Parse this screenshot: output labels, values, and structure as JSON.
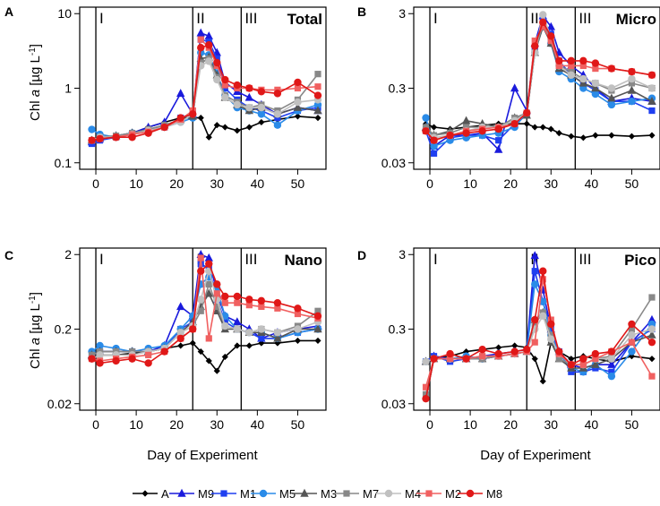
{
  "chart_data": {
    "type": "line",
    "xlabel": "Day of Experiment",
    "ylabel": "Chl a [µg L⁻¹]",
    "y_scale": "log",
    "xlim": [
      -4,
      57
    ],
    "x_ticks": [
      0,
      10,
      20,
      30,
      40,
      50
    ],
    "phase_boundaries": [
      0,
      24,
      36
    ],
    "phase_labels": [
      "I",
      "II",
      "III"
    ],
    "days": [
      -1,
      1,
      5,
      9,
      13,
      17,
      21,
      24,
      26,
      28,
      30,
      32,
      35,
      38,
      41,
      45,
      50,
      55
    ],
    "legend": [
      {
        "name": "A",
        "color": "#000000",
        "marker": "diamond"
      },
      {
        "name": "M9",
        "color": "#1a1adc",
        "marker": "triangle"
      },
      {
        "name": "M1",
        "color": "#1f3ff0",
        "marker": "square"
      },
      {
        "name": "M5",
        "color": "#2a8be8",
        "marker": "circle"
      },
      {
        "name": "M3",
        "color": "#555555",
        "marker": "triangle"
      },
      {
        "name": "M7",
        "color": "#888888",
        "marker": "square"
      },
      {
        "name": "M4",
        "color": "#c0c0c0",
        "marker": "circle"
      },
      {
        "name": "M2",
        "color": "#f06060",
        "marker": "square"
      },
      {
        "name": "M8",
        "color": "#e01818",
        "marker": "circle"
      }
    ],
    "panels": [
      {
        "letter": "A",
        "title": "Total",
        "ylim": [
          0.1,
          10
        ],
        "y_ticks": [
          0.1,
          1,
          10
        ],
        "y_tick_labels": [
          "0.1",
          "1",
          "10"
        ],
        "series": [
          {
            "name": "A",
            "values": [
              0.2,
              0.22,
              0.22,
              0.25,
              0.3,
              0.35,
              0.4,
              0.4,
              0.4,
              0.22,
              0.32,
              0.3,
              0.27,
              0.3,
              0.35,
              0.38,
              0.42,
              0.4
            ]
          },
          {
            "name": "M9",
            "values": [
              0.19,
              0.21,
              0.23,
              0.25,
              0.3,
              0.35,
              0.85,
              0.45,
              5.5,
              5.0,
              3.0,
              1.2,
              0.9,
              0.75,
              0.6,
              0.45,
              0.55,
              0.5
            ]
          },
          {
            "name": "M1",
            "values": [
              0.18,
              0.2,
              0.22,
              0.24,
              0.27,
              0.3,
              0.4,
              0.45,
              4.5,
              4.2,
              2.5,
              1.0,
              0.7,
              0.55,
              0.5,
              0.4,
              0.5,
              0.55
            ]
          },
          {
            "name": "M5",
            "values": [
              0.28,
              0.24,
              0.22,
              0.25,
              0.27,
              0.3,
              0.35,
              0.4,
              3.0,
              2.8,
              1.6,
              0.8,
              0.55,
              0.5,
              0.45,
              0.32,
              0.5,
              0.6
            ]
          },
          {
            "name": "M3",
            "values": [
              0.2,
              0.22,
              0.23,
              0.25,
              0.28,
              0.32,
              0.38,
              0.42,
              2.5,
              2.6,
              1.5,
              0.75,
              0.6,
              0.5,
              0.55,
              0.45,
              0.55,
              0.5
            ]
          },
          {
            "name": "M7",
            "values": [
              0.2,
              0.22,
              0.23,
              0.25,
              0.28,
              0.32,
              0.38,
              0.5,
              2.2,
              2.5,
              1.4,
              0.8,
              0.65,
              0.55,
              0.6,
              0.5,
              0.7,
              1.55
            ]
          },
          {
            "name": "M4",
            "values": [
              0.2,
              0.22,
              0.22,
              0.24,
              0.27,
              0.3,
              0.35,
              0.45,
              2.0,
              2.3,
              1.3,
              0.75,
              0.6,
              0.55,
              0.55,
              0.45,
              0.65,
              0.7
            ]
          },
          {
            "name": "M2",
            "values": [
              0.2,
              0.21,
              0.22,
              0.24,
              0.26,
              0.3,
              0.38,
              0.5,
              4.5,
              3.5,
              2.0,
              1.1,
              1.0,
              1.0,
              0.95,
              0.95,
              1.0,
              1.05
            ]
          },
          {
            "name": "M8",
            "values": [
              0.2,
              0.21,
              0.22,
              0.22,
              0.25,
              0.3,
              0.4,
              0.45,
              3.5,
              3.8,
              2.2,
              1.3,
              1.1,
              1.0,
              0.9,
              0.85,
              1.2,
              0.8
            ]
          }
        ]
      },
      {
        "letter": "B",
        "title": "Micro",
        "ylim": [
          0.03,
          3
        ],
        "y_ticks": [
          0.03,
          0.3,
          3
        ],
        "y_tick_labels": [
          "0.03",
          "0.3",
          "3"
        ],
        "series": [
          {
            "name": "A",
            "values": [
              0.1,
              0.09,
              0.085,
              0.09,
              0.095,
              0.1,
              0.1,
              0.1,
              0.09,
              0.09,
              0.085,
              0.075,
              0.068,
              0.065,
              0.07,
              0.07,
              0.068,
              0.07
            ]
          },
          {
            "name": "M9",
            "values": [
              0.09,
              0.05,
              0.07,
              0.07,
              0.075,
              0.045,
              0.3,
              0.15,
              1.2,
              2.8,
              2.0,
              0.9,
              0.6,
              0.45,
              0.3,
              0.2,
              0.22,
              0.2
            ]
          },
          {
            "name": "M1",
            "values": [
              0.08,
              0.04,
              0.065,
              0.07,
              0.07,
              0.06,
              0.1,
              0.13,
              1.0,
              2.5,
              1.6,
              0.7,
              0.45,
              0.35,
              0.28,
              0.2,
              0.2,
              0.15
            ]
          },
          {
            "name": "M5",
            "values": [
              0.12,
              0.05,
              0.06,
              0.065,
              0.07,
              0.075,
              0.09,
              0.14,
              0.9,
              2.0,
              1.2,
              0.5,
              0.4,
              0.3,
              0.25,
              0.18,
              0.2,
              0.22
            ]
          },
          {
            "name": "M3",
            "values": [
              0.09,
              0.07,
              0.08,
              0.11,
              0.1,
              0.09,
              0.12,
              0.13,
              0.9,
              2.0,
              1.2,
              0.55,
              0.45,
              0.35,
              0.3,
              0.22,
              0.28,
              0.2
            ]
          },
          {
            "name": "M7",
            "values": [
              0.09,
              0.07,
              0.075,
              0.09,
              0.09,
              0.09,
              0.12,
              0.14,
              0.9,
              2.2,
              1.3,
              0.6,
              0.5,
              0.4,
              0.35,
              0.28,
              0.35,
              0.3
            ]
          },
          {
            "name": "M4",
            "values": [
              0.08,
              0.065,
              0.07,
              0.08,
              0.09,
              0.09,
              0.11,
              0.14,
              0.9,
              2.9,
              1.4,
              0.6,
              0.45,
              0.4,
              0.35,
              0.3,
              0.4,
              0.3
            ]
          },
          {
            "name": "M2",
            "values": [
              0.08,
              0.06,
              0.07,
              0.08,
              0.085,
              0.09,
              0.1,
              0.14,
              1.3,
              2.0,
              1.3,
              0.6,
              0.6,
              0.6,
              0.55,
              0.55,
              0.5,
              0.45
            ]
          },
          {
            "name": "M8",
            "values": [
              0.08,
              0.06,
              0.07,
              0.075,
              0.08,
              0.085,
              0.1,
              0.14,
              1.1,
              2.3,
              1.5,
              0.7,
              0.7,
              0.7,
              0.65,
              0.55,
              0.5,
              0.45
            ]
          }
        ]
      },
      {
        "letter": "C",
        "title": "Nano",
        "ylim": [
          0.02,
          2
        ],
        "y_ticks": [
          0.02,
          0.2,
          2
        ],
        "y_tick_labels": [
          "0.02",
          "0.2",
          "2"
        ],
        "series": [
          {
            "name": "A",
            "values": [
              0.085,
              0.09,
              0.09,
              0.095,
              0.1,
              0.11,
              0.12,
              0.13,
              0.1,
              0.075,
              0.055,
              0.085,
              0.12,
              0.12,
              0.13,
              0.13,
              0.14,
              0.14
            ]
          },
          {
            "name": "M9",
            "values": [
              0.09,
              0.1,
              0.1,
              0.1,
              0.1,
              0.12,
              0.4,
              0.3,
              2.0,
              1.8,
              0.6,
              0.3,
              0.25,
              0.2,
              0.15,
              0.18,
              0.2,
              0.22
            ]
          },
          {
            "name": "M1",
            "values": [
              0.09,
              0.1,
              0.1,
              0.1,
              0.1,
              0.11,
              0.2,
              0.25,
              1.5,
              1.3,
              0.5,
              0.25,
              0.2,
              0.18,
              0.15,
              0.15,
              0.18,
              0.2
            ]
          },
          {
            "name": "M5",
            "values": [
              0.1,
              0.12,
              0.11,
              0.1,
              0.11,
              0.12,
              0.2,
              0.3,
              0.8,
              1.0,
              0.7,
              0.3,
              0.2,
              0.18,
              0.18,
              0.15,
              0.18,
              0.2
            ]
          },
          {
            "name": "M3",
            "values": [
              0.09,
              0.1,
              0.1,
              0.1,
              0.1,
              0.11,
              0.18,
              0.25,
              0.4,
              0.6,
              0.35,
              0.2,
              0.2,
              0.18,
              0.18,
              0.15,
              0.2,
              0.2
            ]
          },
          {
            "name": "M7",
            "values": [
              0.09,
              0.1,
              0.1,
              0.1,
              0.1,
              0.11,
              0.18,
              0.22,
              0.35,
              0.8,
              0.4,
              0.22,
              0.2,
              0.18,
              0.2,
              0.18,
              0.22,
              0.35
            ]
          },
          {
            "name": "M4",
            "values": [
              0.08,
              0.09,
              0.09,
              0.09,
              0.1,
              0.11,
              0.18,
              0.22,
              0.5,
              1.2,
              0.5,
              0.22,
              0.2,
              0.18,
              0.2,
              0.18,
              0.2,
              0.25
            ]
          },
          {
            "name": "M2",
            "values": [
              0.08,
              0.075,
              0.08,
              0.085,
              0.09,
              0.1,
              0.15,
              0.2,
              1.8,
              0.15,
              0.6,
              0.45,
              0.45,
              0.42,
              0.4,
              0.38,
              0.32,
              0.28
            ]
          },
          {
            "name": "M8",
            "values": [
              0.08,
              0.07,
              0.075,
              0.08,
              0.07,
              0.1,
              0.15,
              0.2,
              1.2,
              1.5,
              0.8,
              0.55,
              0.55,
              0.5,
              0.48,
              0.45,
              0.38,
              0.3
            ]
          }
        ]
      },
      {
        "letter": "D",
        "title": "Pico",
        "ylim": [
          0.03,
          3
        ],
        "y_ticks": [
          0.03,
          0.3,
          3
        ],
        "y_tick_labels": [
          "0.03",
          "0.3",
          "3"
        ],
        "series": [
          {
            "name": "A",
            "values": [
              0.035,
              0.12,
              0.13,
              0.15,
              0.16,
              0.17,
              0.18,
              0.17,
              0.12,
              0.06,
              0.2,
              0.15,
              0.12,
              0.13,
              0.12,
              0.11,
              0.13,
              0.12
            ]
          },
          {
            "name": "M9",
            "values": [
              0.11,
              0.13,
              0.12,
              0.12,
              0.13,
              0.14,
              0.15,
              0.16,
              2.9,
              1.0,
              0.3,
              0.15,
              0.1,
              0.09,
              0.1,
              0.1,
              0.2,
              0.4
            ]
          },
          {
            "name": "M1",
            "values": [
              0.11,
              0.13,
              0.11,
              0.12,
              0.12,
              0.13,
              0.14,
              0.15,
              1.8,
              0.7,
              0.3,
              0.15,
              0.08,
              0.08,
              0.09,
              0.08,
              0.2,
              0.3
            ]
          },
          {
            "name": "M5",
            "values": [
              0.11,
              0.12,
              0.12,
              0.13,
              0.12,
              0.13,
              0.14,
              0.15,
              1.2,
              0.7,
              0.25,
              0.14,
              0.09,
              0.08,
              0.1,
              0.07,
              0.15,
              0.35
            ]
          },
          {
            "name": "M3",
            "values": [
              0.11,
              0.12,
              0.12,
              0.12,
              0.12,
              0.13,
              0.14,
              0.15,
              0.4,
              0.5,
              0.2,
              0.12,
              0.09,
              0.09,
              0.1,
              0.12,
              0.2,
              0.25
            ]
          },
          {
            "name": "M7",
            "values": [
              0.04,
              0.12,
              0.12,
              0.12,
              0.12,
              0.13,
              0.14,
              0.15,
              0.35,
              0.5,
              0.25,
              0.12,
              0.1,
              0.1,
              0.12,
              0.13,
              0.3,
              0.8
            ]
          },
          {
            "name": "M4",
            "values": [
              0.11,
              0.12,
              0.12,
              0.12,
              0.13,
              0.13,
              0.14,
              0.15,
              0.3,
              0.45,
              0.22,
              0.14,
              0.1,
              0.1,
              0.12,
              0.12,
              0.25,
              0.3
            ]
          },
          {
            "name": "M2",
            "values": [
              0.05,
              0.12,
              0.12,
              0.12,
              0.13,
              0.13,
              0.14,
              0.15,
              0.2,
              1.4,
              0.4,
              0.14,
              0.1,
              0.1,
              0.12,
              0.15,
              0.2,
              0.07
            ]
          },
          {
            "name": "M8",
            "values": [
              0.035,
              0.12,
              0.14,
              0.12,
              0.16,
              0.14,
              0.15,
              0.16,
              0.4,
              1.8,
              0.35,
              0.15,
              0.1,
              0.12,
              0.14,
              0.15,
              0.35,
              0.2
            ]
          }
        ]
      }
    ]
  }
}
